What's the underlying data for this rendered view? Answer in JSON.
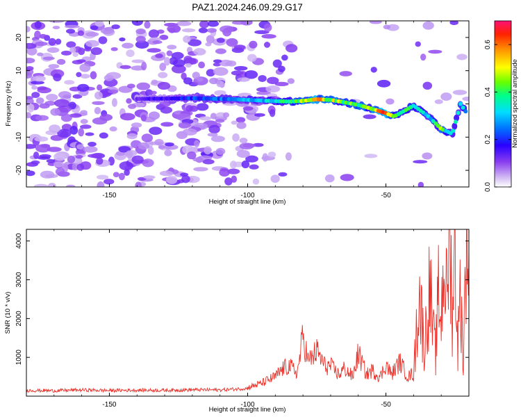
{
  "title": "PAZ1.2024.246.09.29.G17",
  "chart_data": [
    {
      "type": "heatmap",
      "xlabel": "Height of straight line (km)",
      "ylabel": "Frequency (Hz)",
      "xlim": [
        -180,
        -20
      ],
      "ylim": [
        -25,
        25
      ],
      "xticks": [
        -150,
        -100,
        -50
      ],
      "yticks": [
        -20,
        -10,
        0,
        10,
        20
      ],
      "colorbar": {
        "label": "Normalized spectral amplitude",
        "range": [
          0,
          0.7
        ],
        "ticks": [
          0.0,
          0.2,
          0.4,
          0.6
        ],
        "colormap": [
          "#ffffff",
          "#d8c4f4",
          "#8a3ef0",
          "#2a00ff",
          "#0070ff",
          "#00ddff",
          "#00ff88",
          "#66ff00",
          "#ffff00",
          "#ff9900",
          "#ff2200",
          "#ff1177"
        ]
      },
      "ridge": [
        {
          "x": -140,
          "f": 1.5,
          "a": 0.12
        },
        {
          "x": -120,
          "f": 1.7,
          "a": 0.22
        },
        {
          "x": -105,
          "f": 1.4,
          "a": 0.26
        },
        {
          "x": -95,
          "f": 1.0,
          "a": 0.3
        },
        {
          "x": -85,
          "f": 0.7,
          "a": 0.38
        },
        {
          "x": -80,
          "f": 0.9,
          "a": 0.5
        },
        {
          "x": -75,
          "f": 1.4,
          "a": 0.55
        },
        {
          "x": -70,
          "f": 1.2,
          "a": 0.48
        },
        {
          "x": -65,
          "f": 0.5,
          "a": 0.44
        },
        {
          "x": -60,
          "f": -0.3,
          "a": 0.4
        },
        {
          "x": -55,
          "f": -1.5,
          "a": 0.5
        },
        {
          "x": -50,
          "f": -2.8,
          "a": 0.6
        },
        {
          "x": -47,
          "f": -3.8,
          "a": 0.4
        },
        {
          "x": -40,
          "f": -0.5,
          "a": 0.38
        },
        {
          "x": -35,
          "f": -3.5,
          "a": 0.3
        },
        {
          "x": -30,
          "f": -7.5,
          "a": 0.42
        },
        {
          "x": -26,
          "f": -9.0,
          "a": 0.3
        },
        {
          "x": -23,
          "f": 0.0,
          "a": 0.36
        },
        {
          "x": -21,
          "f": -2.5,
          "a": 0.28
        }
      ]
    },
    {
      "type": "line",
      "xlabel": "Height of straight line (km)",
      "ylabel": "SNR (10 * v/v)",
      "xlim": [
        -180,
        -20
      ],
      "ylim": [
        0,
        4300
      ],
      "xticks": [
        -150,
        -100,
        -50
      ],
      "yticks": [
        1000,
        2000,
        3000,
        4000
      ],
      "color": "#e8322a",
      "series": [
        {
          "x": [
            -180,
            -170,
            -160,
            -150,
            -140,
            -130,
            -120,
            -110,
            -100,
            -95,
            -90,
            -87,
            -85,
            -82,
            -80,
            -78,
            -75,
            -72,
            -70,
            -67,
            -65,
            -62,
            -60,
            -57,
            -55,
            -52,
            -50,
            -48,
            -45,
            -42,
            -40,
            -38,
            -36,
            -35,
            -34,
            -33,
            -32,
            -31,
            -30,
            -29,
            -28,
            -27,
            -26,
            -25,
            -24,
            -23,
            -22,
            -21,
            -20
          ],
          "y": [
            150,
            140,
            160,
            145,
            155,
            150,
            165,
            160,
            200,
            300,
            450,
            650,
            700,
            550,
            1400,
            800,
            1050,
            700,
            700,
            500,
            650,
            450,
            1000,
            500,
            600,
            450,
            750,
            500,
            800,
            450,
            550,
            2700,
            1200,
            2300,
            2800,
            1600,
            1100,
            2600,
            2000,
            3650,
            2500,
            4300,
            2200,
            3700,
            1300,
            2800,
            800,
            4050,
            3800
          ]
        }
      ]
    }
  ]
}
